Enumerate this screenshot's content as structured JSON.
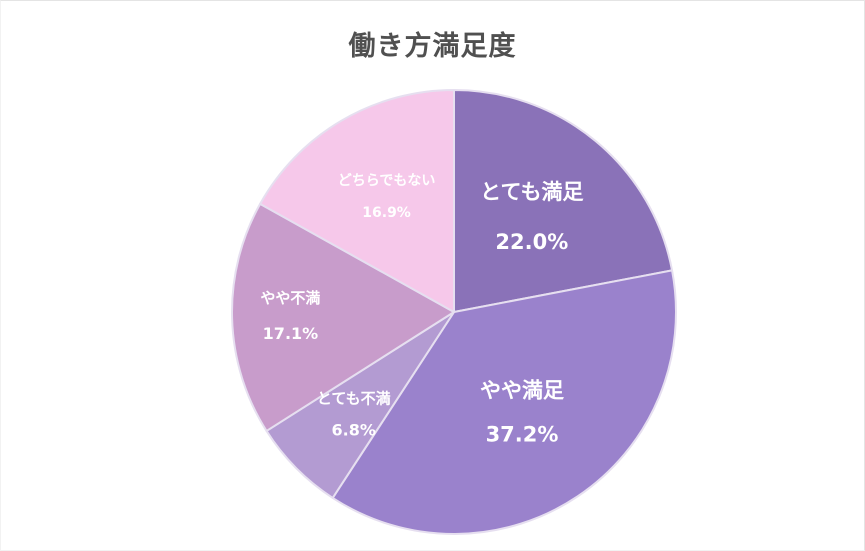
{
  "chart_data": {
    "type": "pie",
    "title": "働き方満足度",
    "start_angle_deg": 0,
    "direction": "clockwise",
    "legend": "none",
    "slices": [
      {
        "label": "とても満足",
        "value": 22.0,
        "value_label": "22.0%",
        "color": "#8a72b8",
        "label_color": "#ffffff"
      },
      {
        "label": "やや満足",
        "value": 37.2,
        "value_label": "37.2%",
        "color": "#9a82cc",
        "label_color": "#ffffff"
      },
      {
        "label": "とても不満",
        "value": 6.8,
        "value_label": "6.8%",
        "color": "#b39bd2",
        "label_color": "#ffffff"
      },
      {
        "label": "やや不満",
        "value": 17.1,
        "value_label": "17.1%",
        "color": "#c89ccb",
        "label_color": "#ffffff"
      },
      {
        "label": "どちらでもない",
        "value": 16.9,
        "value_label": "16.9%",
        "color": "#f6c8ea",
        "label_color": "#ffffff"
      }
    ]
  }
}
